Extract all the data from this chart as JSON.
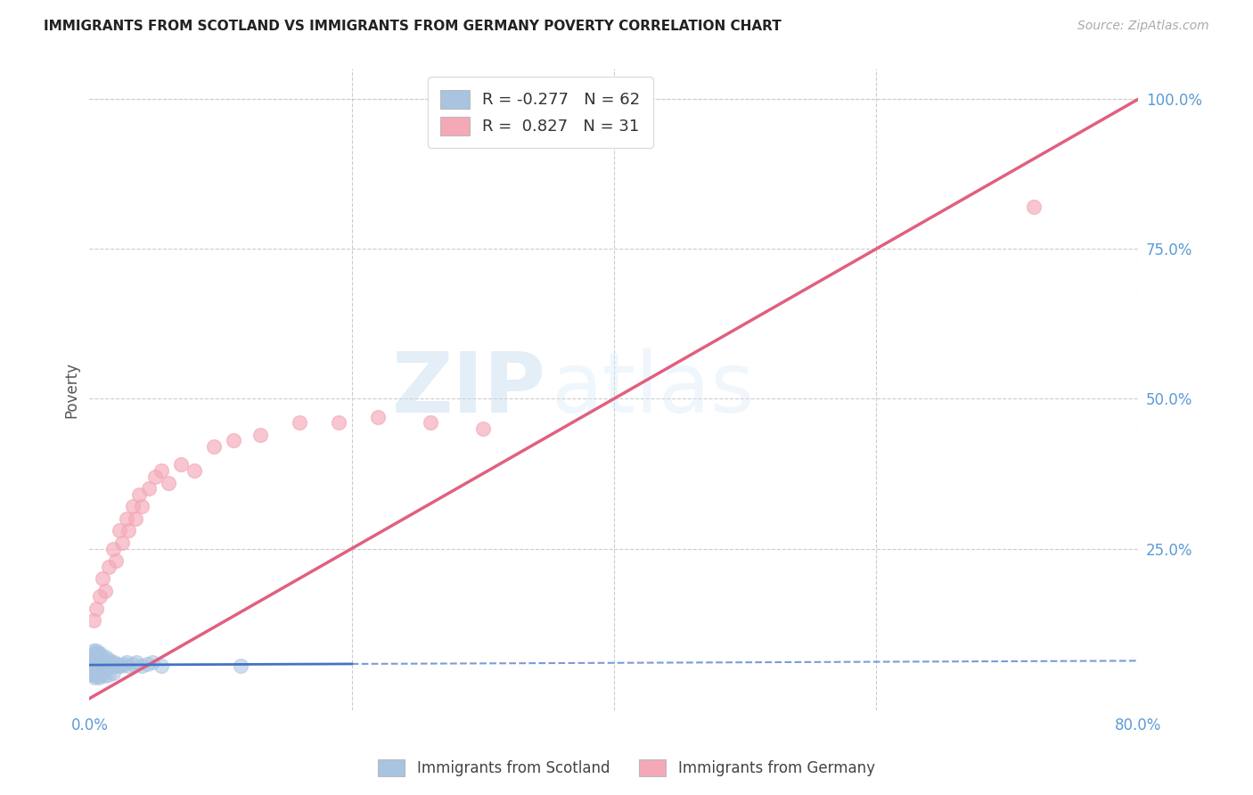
{
  "title": "IMMIGRANTS FROM SCOTLAND VS IMMIGRANTS FROM GERMANY POVERTY CORRELATION CHART",
  "source": "Source: ZipAtlas.com",
  "ylabel": "Poverty",
  "xlim": [
    0.0,
    0.8
  ],
  "ylim": [
    -0.02,
    1.05
  ],
  "x_ticks": [
    0.0,
    0.2,
    0.4,
    0.6,
    0.8
  ],
  "x_tick_labels": [
    "0.0%",
    "",
    "",
    "",
    "80.0%"
  ],
  "y_ticks_right": [
    0.25,
    0.5,
    0.75,
    1.0
  ],
  "y_tick_labels_right": [
    "25.0%",
    "50.0%",
    "75.0%",
    "100.0%"
  ],
  "grid_color": "#cccccc",
  "background_color": "#ffffff",
  "scotland_color": "#a8c4e0",
  "germany_color": "#f4a8b8",
  "scotland_R": -0.277,
  "scotland_N": 62,
  "germany_R": 0.827,
  "germany_N": 31,
  "scotland_line_color": "#4472c4",
  "germany_line_color": "#e06080",
  "legend_label_scotland": "Immigrants from Scotland",
  "legend_label_germany": "Immigrants from Germany",
  "watermark_zip": "ZIP",
  "watermark_atlas": "atlas",
  "title_fontsize": 11,
  "axis_label_color": "#5b9bd5",
  "scotland_points_x": [
    0.001,
    0.002,
    0.002,
    0.003,
    0.003,
    0.003,
    0.004,
    0.004,
    0.004,
    0.004,
    0.005,
    0.005,
    0.005,
    0.005,
    0.006,
    0.006,
    0.006,
    0.007,
    0.007,
    0.007,
    0.008,
    0.008,
    0.008,
    0.009,
    0.009,
    0.01,
    0.01,
    0.011,
    0.011,
    0.012,
    0.013,
    0.014,
    0.015,
    0.016,
    0.017,
    0.018,
    0.019,
    0.02,
    0.021,
    0.022,
    0.024,
    0.026,
    0.028,
    0.03,
    0.033,
    0.036,
    0.04,
    0.044,
    0.048,
    0.055,
    0.003,
    0.004,
    0.005,
    0.006,
    0.007,
    0.008,
    0.009,
    0.01,
    0.012,
    0.015,
    0.018,
    0.115
  ],
  "scotland_points_y": [
    0.05,
    0.06,
    0.045,
    0.07,
    0.04,
    0.08,
    0.05,
    0.065,
    0.055,
    0.075,
    0.045,
    0.06,
    0.07,
    0.08,
    0.05,
    0.065,
    0.075,
    0.055,
    0.06,
    0.07,
    0.05,
    0.065,
    0.075,
    0.055,
    0.07,
    0.05,
    0.065,
    0.055,
    0.06,
    0.07,
    0.06,
    0.055,
    0.065,
    0.06,
    0.055,
    0.058,
    0.06,
    0.055,
    0.058,
    0.055,
    0.055,
    0.058,
    0.06,
    0.055,
    0.058,
    0.06,
    0.055,
    0.058,
    0.06,
    0.055,
    0.04,
    0.035,
    0.038,
    0.04,
    0.035,
    0.038,
    0.04,
    0.042,
    0.038,
    0.04,
    0.042,
    0.055
  ],
  "germany_points_x": [
    0.003,
    0.005,
    0.008,
    0.01,
    0.012,
    0.015,
    0.018,
    0.02,
    0.023,
    0.025,
    0.028,
    0.03,
    0.033,
    0.035,
    0.038,
    0.04,
    0.045,
    0.05,
    0.055,
    0.06,
    0.07,
    0.08,
    0.095,
    0.11,
    0.13,
    0.16,
    0.19,
    0.22,
    0.26,
    0.3,
    0.72
  ],
  "germany_points_y": [
    0.13,
    0.15,
    0.17,
    0.2,
    0.18,
    0.22,
    0.25,
    0.23,
    0.28,
    0.26,
    0.3,
    0.28,
    0.32,
    0.3,
    0.34,
    0.32,
    0.35,
    0.37,
    0.38,
    0.36,
    0.39,
    0.38,
    0.42,
    0.43,
    0.44,
    0.46,
    0.46,
    0.47,
    0.46,
    0.45,
    0.82
  ],
  "germany_line_x": [
    0.0,
    0.8
  ],
  "germany_line_y": [
    0.0,
    1.0
  ],
  "scotland_line_x0": 0.0,
  "scotland_line_x1": 0.2,
  "scotland_line_xdash1": 0.2,
  "scotland_line_xdash2": 0.8
}
